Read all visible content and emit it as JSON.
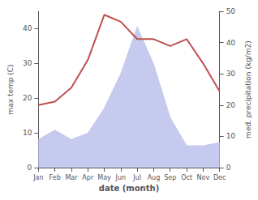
{
  "chart_data": {
    "type": "line",
    "xlabel": "date (month)",
    "ylabel": "max temp (C)",
    "y2label": "med. precipitation (kg/m2)",
    "categories": [
      "Jan",
      "Feb",
      "Mar",
      "Apr",
      "May",
      "Jun",
      "Jul",
      "Aug",
      "Sep",
      "Oct",
      "Nov",
      "Dec"
    ],
    "series": [
      {
        "type": "area",
        "color": "#c5caee",
        "axis": "y2",
        "values": [
          9,
          12,
          9,
          11,
          19,
          30,
          45,
          33,
          16,
          7,
          7,
          8
        ]
      },
      {
        "type": "line",
        "color": "#c0504d",
        "values": [
          18,
          19,
          23,
          31,
          44,
          42,
          37,
          37,
          35,
          37,
          30,
          22
        ]
      }
    ],
    "ylim": [
      0,
      45
    ],
    "yticks": [
      0,
      10,
      20,
      30,
      40
    ],
    "y2lim": [
      0,
      50
    ],
    "y2ticks": [
      0,
      10,
      20,
      30,
      40,
      50
    ],
    "grid": false
  }
}
